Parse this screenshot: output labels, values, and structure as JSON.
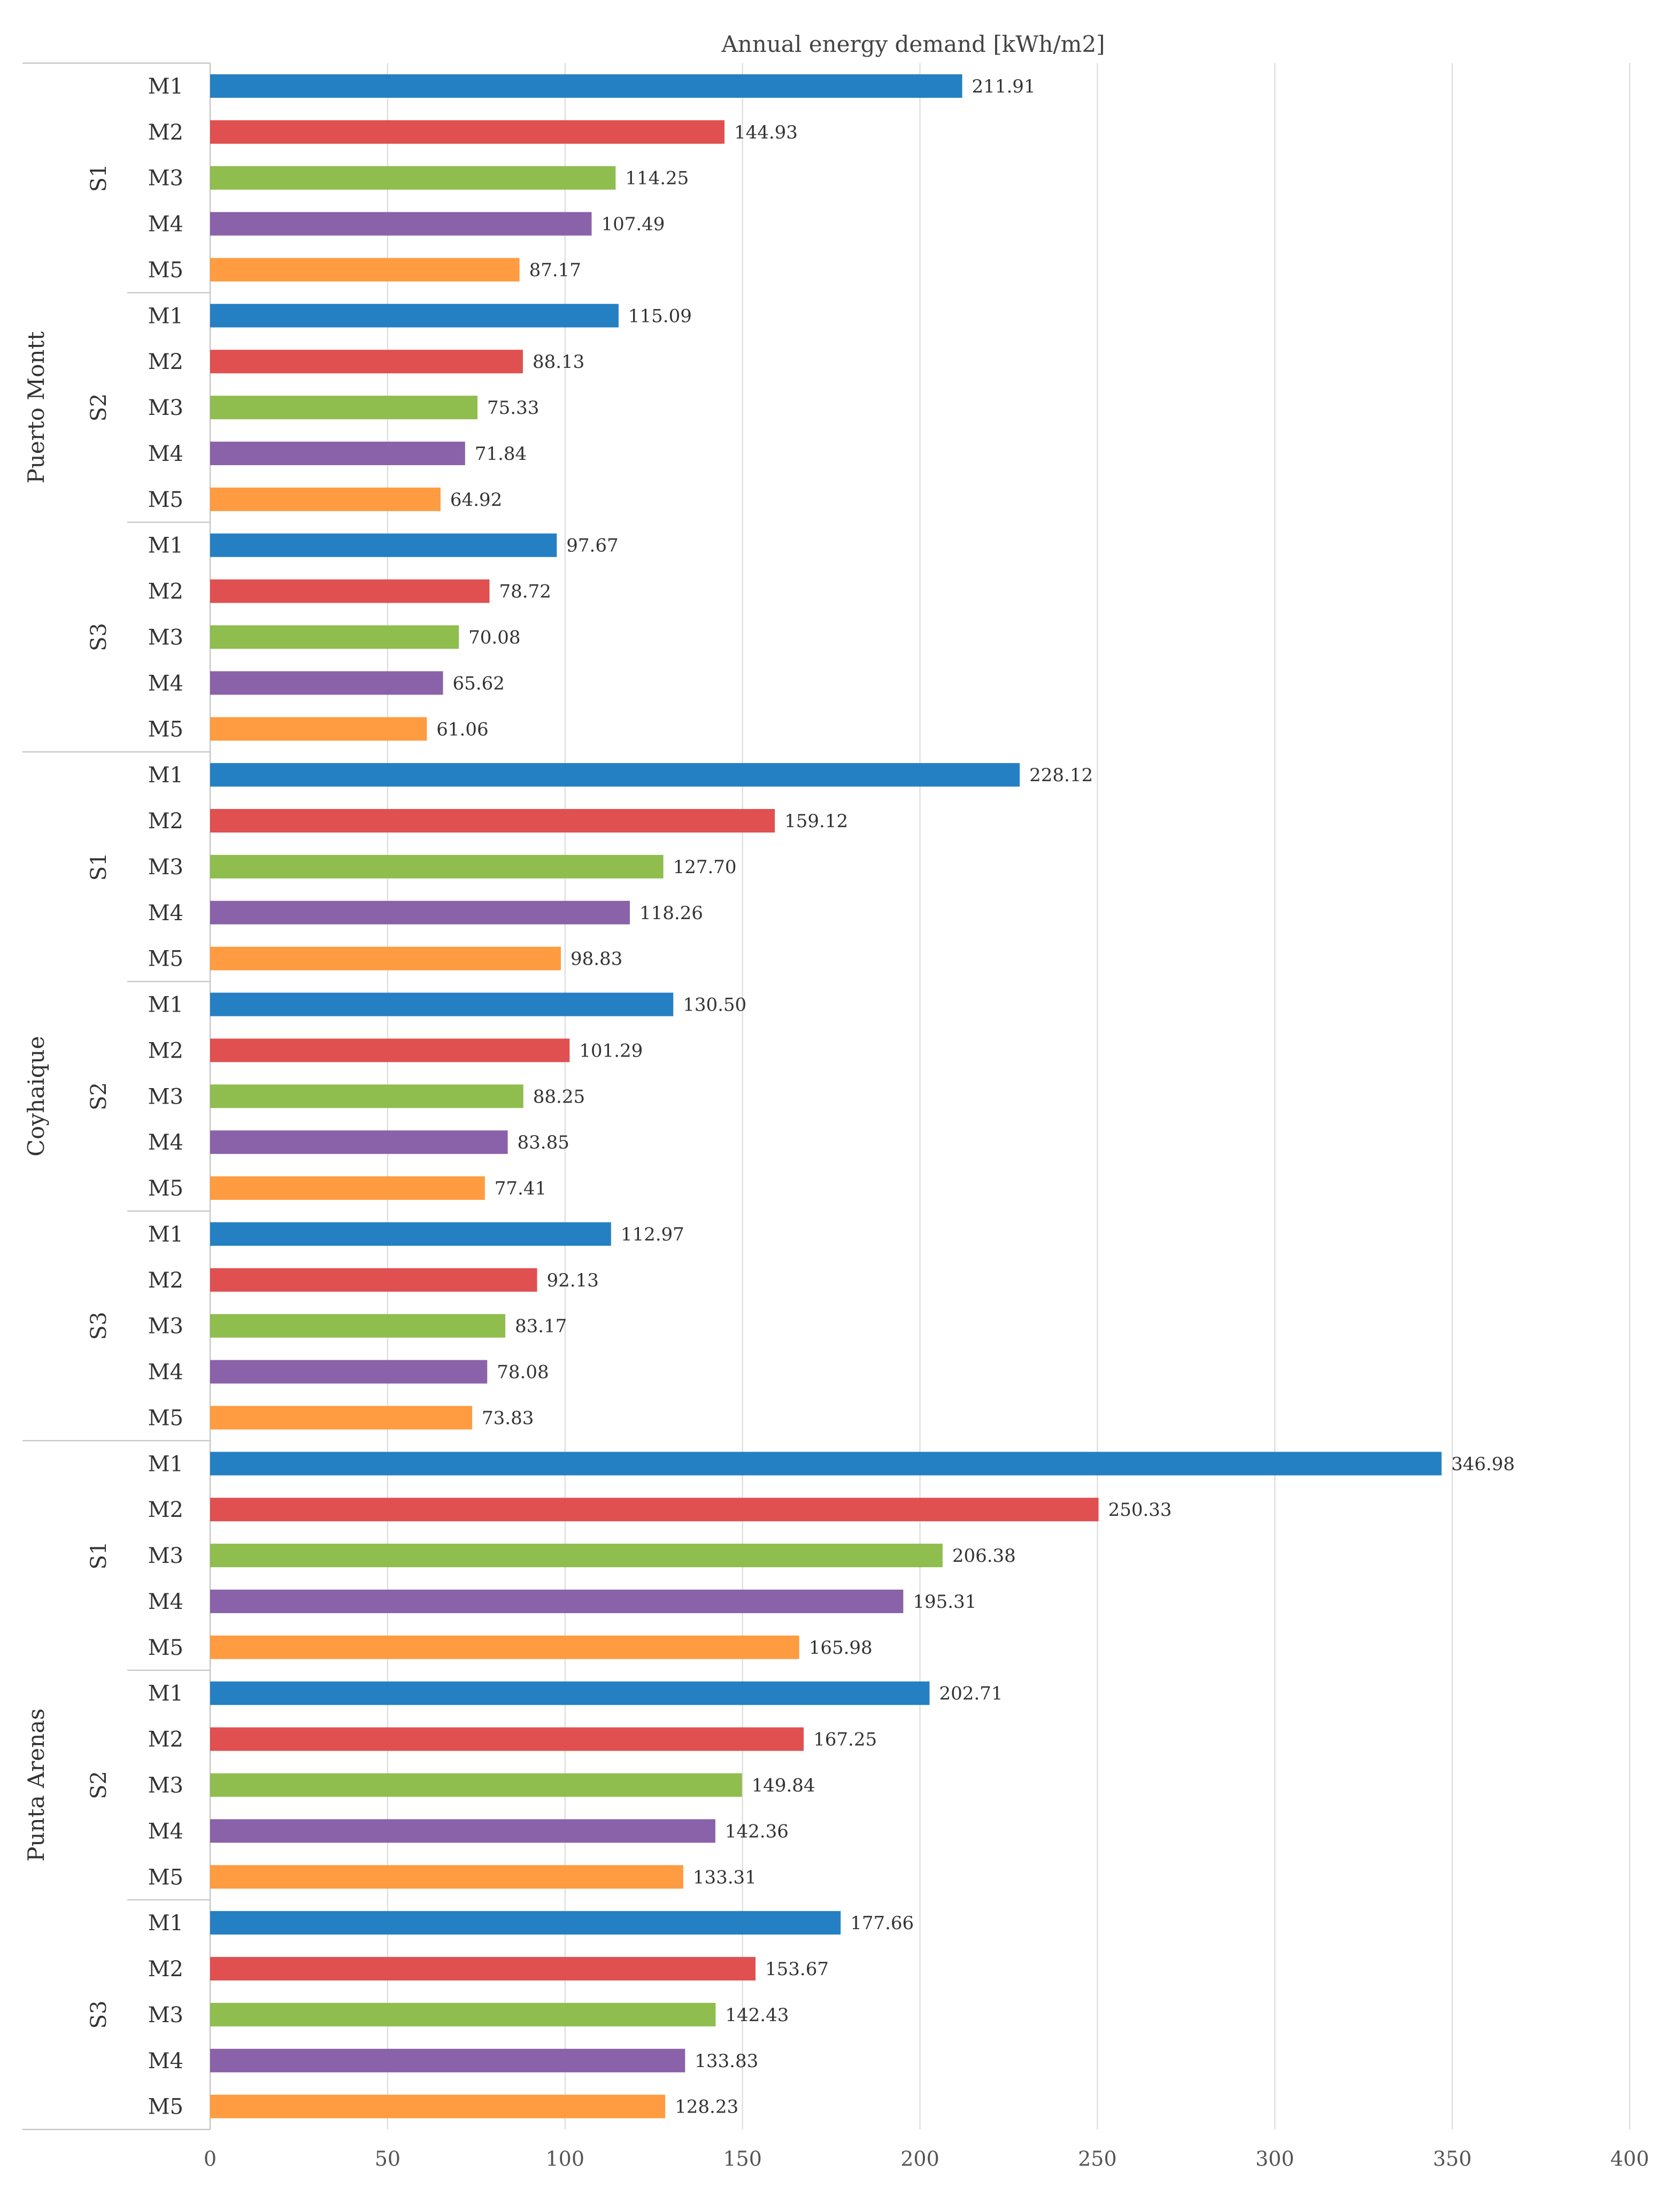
{
  "chart_data": {
    "type": "bar",
    "orientation": "horizontal",
    "title": "Annual energy demand [kWh/m2]",
    "xlim": [
      0,
      400
    ],
    "xticks": [
      0,
      50,
      100,
      150,
      200,
      250,
      300,
      350,
      400
    ],
    "grid": true,
    "colors": {
      "M1": "#2580c3",
      "M2": "#e05050",
      "M3": "#8fbd4e",
      "M4": "#8a62a9",
      "M5": "#ff9b40"
    },
    "groups": [
      {
        "city": "Puerto Montt",
        "scenarios": [
          {
            "name": "S1",
            "bars": [
              {
                "model": "M1",
                "value": 211.91,
                "label": "211.91"
              },
              {
                "model": "M2",
                "value": 144.93,
                "label": "144.93"
              },
              {
                "model": "M3",
                "value": 114.25,
                "label": "114.25"
              },
              {
                "model": "M4",
                "value": 107.49,
                "label": "107.49"
              },
              {
                "model": "M5",
                "value": 87.17,
                "label": "87.17"
              }
            ]
          },
          {
            "name": "S2",
            "bars": [
              {
                "model": "M1",
                "value": 115.09,
                "label": "115.09"
              },
              {
                "model": "M2",
                "value": 88.13,
                "label": "88.13"
              },
              {
                "model": "M3",
                "value": 75.33,
                "label": "75.33"
              },
              {
                "model": "M4",
                "value": 71.84,
                "label": "71.84"
              },
              {
                "model": "M5",
                "value": 64.92,
                "label": "64.92"
              }
            ]
          },
          {
            "name": "S3",
            "bars": [
              {
                "model": "M1",
                "value": 97.67,
                "label": "97.67"
              },
              {
                "model": "M2",
                "value": 78.72,
                "label": "78.72"
              },
              {
                "model": "M3",
                "value": 70.08,
                "label": "70.08"
              },
              {
                "model": "M4",
                "value": 65.62,
                "label": "65.62"
              },
              {
                "model": "M5",
                "value": 61.06,
                "label": "61.06"
              }
            ]
          }
        ]
      },
      {
        "city": "Coyhaique",
        "scenarios": [
          {
            "name": "S1",
            "bars": [
              {
                "model": "M1",
                "value": 228.12,
                "label": "228.12"
              },
              {
                "model": "M2",
                "value": 159.12,
                "label": "159.12"
              },
              {
                "model": "M3",
                "value": 127.7,
                "label": "127.70"
              },
              {
                "model": "M4",
                "value": 118.26,
                "label": "118.26"
              },
              {
                "model": "M5",
                "value": 98.83,
                "label": "98.83"
              }
            ]
          },
          {
            "name": "S2",
            "bars": [
              {
                "model": "M1",
                "value": 130.5,
                "label": "130.50"
              },
              {
                "model": "M2",
                "value": 101.29,
                "label": "101.29"
              },
              {
                "model": "M3",
                "value": 88.25,
                "label": "88.25"
              },
              {
                "model": "M4",
                "value": 83.85,
                "label": "83.85"
              },
              {
                "model": "M5",
                "value": 77.41,
                "label": "77.41"
              }
            ]
          },
          {
            "name": "S3",
            "bars": [
              {
                "model": "M1",
                "value": 112.97,
                "label": "112.97"
              },
              {
                "model": "M2",
                "value": 92.13,
                "label": "92.13"
              },
              {
                "model": "M3",
                "value": 83.17,
                "label": "83.17"
              },
              {
                "model": "M4",
                "value": 78.08,
                "label": "78.08"
              },
              {
                "model": "M5",
                "value": 73.83,
                "label": "73.83"
              }
            ]
          }
        ]
      },
      {
        "city": "Punta Arenas",
        "scenarios": [
          {
            "name": "S1",
            "bars": [
              {
                "model": "M1",
                "value": 346.98,
                "label": "346.98"
              },
              {
                "model": "M2",
                "value": 250.33,
                "label": "250.33"
              },
              {
                "model": "M3",
                "value": 206.38,
                "label": "206.38"
              },
              {
                "model": "M4",
                "value": 195.31,
                "label": "195.31"
              },
              {
                "model": "M5",
                "value": 165.98,
                "label": "165.98"
              }
            ]
          },
          {
            "name": "S2",
            "bars": [
              {
                "model": "M1",
                "value": 202.71,
                "label": "202.71"
              },
              {
                "model": "M2",
                "value": 167.25,
                "label": "167.25"
              },
              {
                "model": "M3",
                "value": 149.84,
                "label": "149.84"
              },
              {
                "model": "M4",
                "value": 142.36,
                "label": "142.36"
              },
              {
                "model": "M5",
                "value": 133.31,
                "label": "133.31"
              }
            ]
          },
          {
            "name": "S3",
            "bars": [
              {
                "model": "M1",
                "value": 177.66,
                "label": "177.66"
              },
              {
                "model": "M2",
                "value": 153.67,
                "label": "153.67"
              },
              {
                "model": "M3",
                "value": 142.43,
                "label": "142.43"
              },
              {
                "model": "M4",
                "value": 133.83,
                "label": "133.83"
              },
              {
                "model": "M5",
                "value": 128.23,
                "label": "128.23"
              }
            ]
          }
        ]
      }
    ]
  }
}
